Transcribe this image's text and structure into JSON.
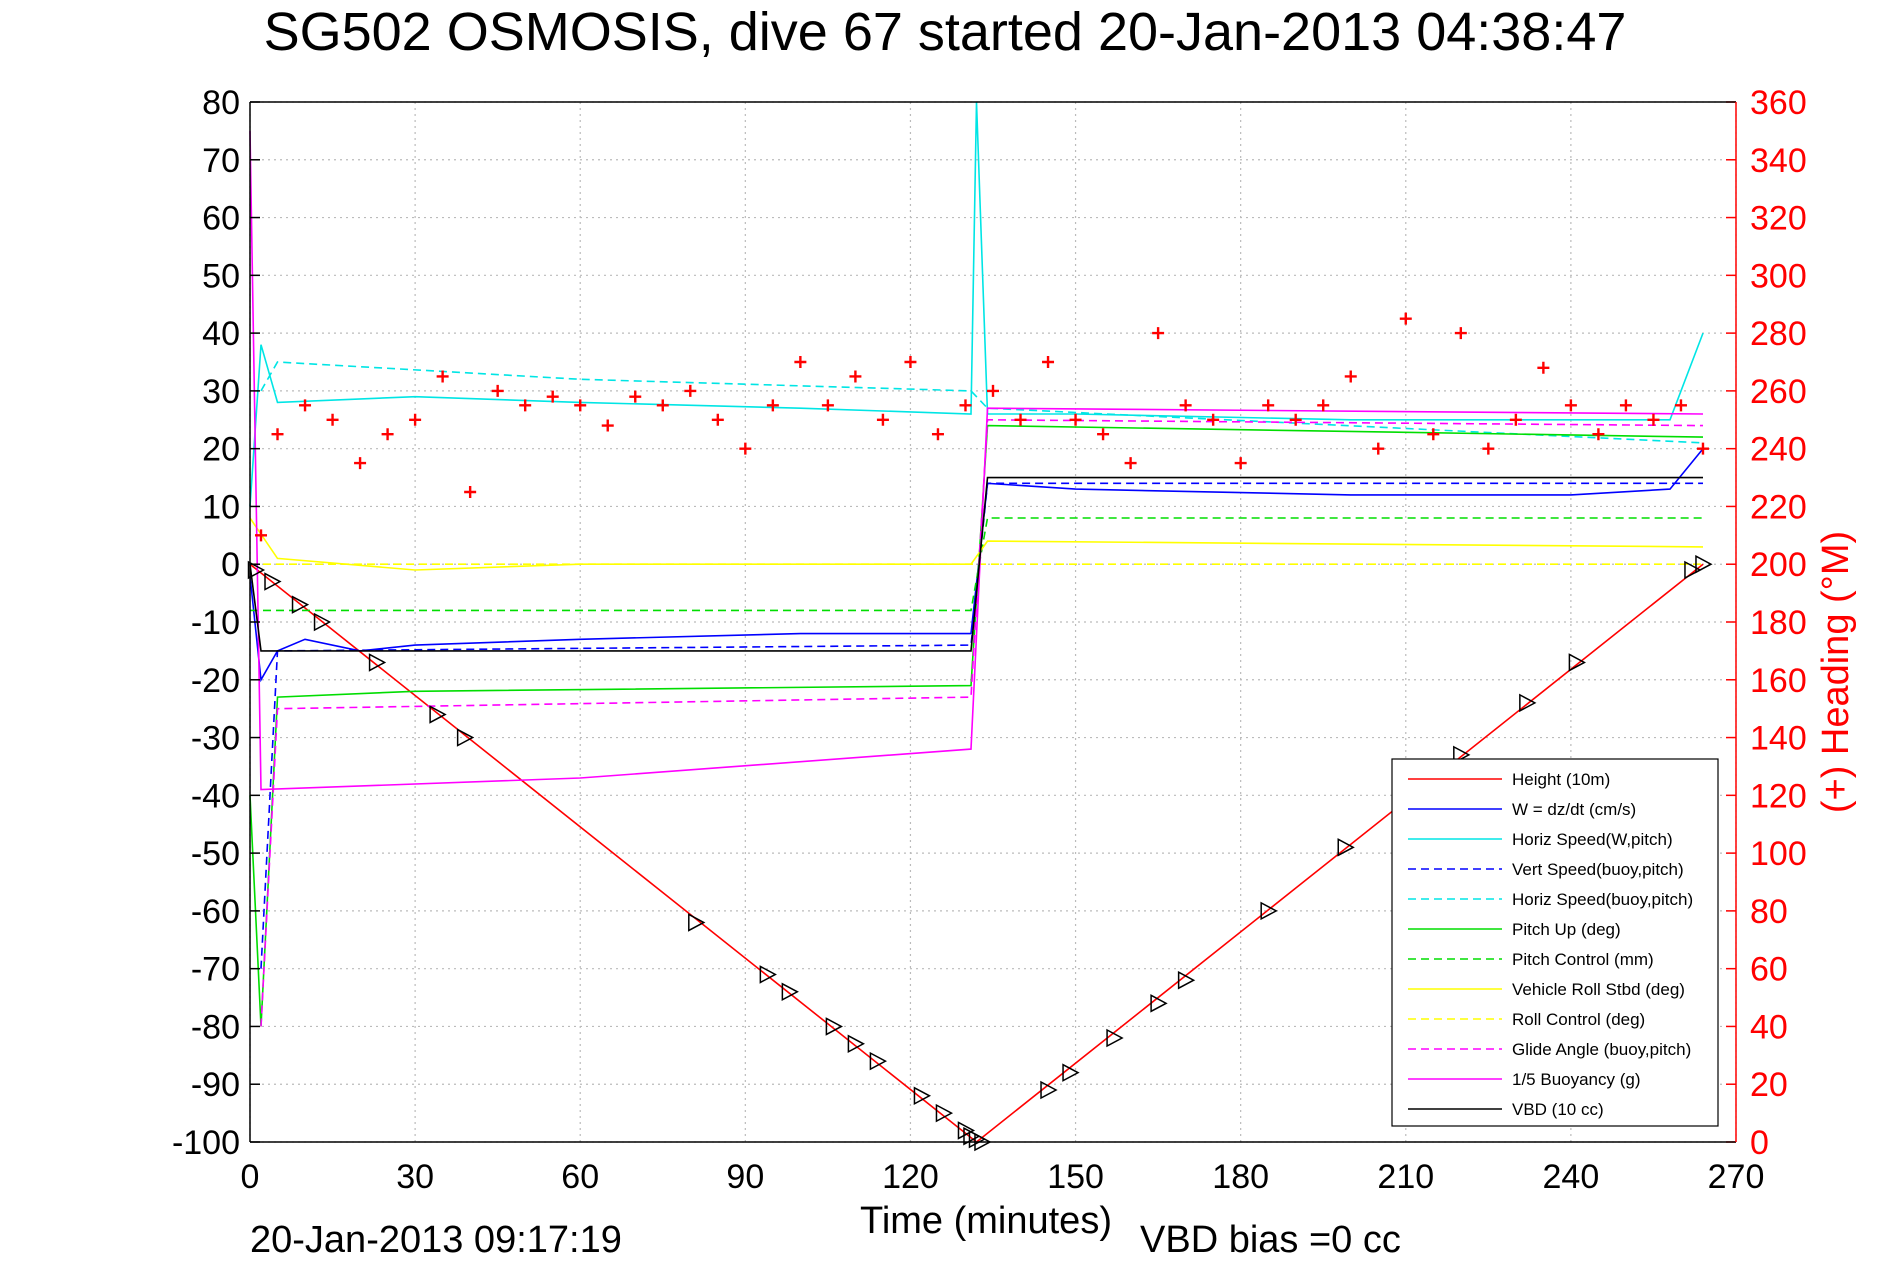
{
  "chart_data": {
    "type": "line",
    "title": "SG502 OSMOSIS, dive 67 started 20-Jan-2013 04:38:47",
    "xlabel": "Time (minutes)",
    "ylabel": "",
    "ylabel_right": "(+) Heading (°M)",
    "footer_left": "20-Jan-2013 09:17:19",
    "footer_right": "VBD bias =0 cc",
    "xlim": [
      0,
      270
    ],
    "ylim": [
      -100,
      80
    ],
    "ylim_right": [
      0,
      360
    ],
    "x_ticks": [
      "0",
      "30",
      "60",
      "90",
      "120",
      "150",
      "180",
      "210",
      "240",
      "270"
    ],
    "y_ticks": [
      "-100",
      "-90",
      "-80",
      "-70",
      "-60",
      "-50",
      "-40",
      "-30",
      "-20",
      "-10",
      "0",
      "10",
      "20",
      "30",
      "40",
      "50",
      "60",
      "70",
      "80"
    ],
    "y_ticks_right": [
      "0",
      "20",
      "40",
      "60",
      "80",
      "100",
      "120",
      "140",
      "160",
      "180",
      "200",
      "220",
      "240",
      "260",
      "280",
      "300",
      "320",
      "340",
      "360"
    ],
    "grid": true,
    "legend_position": "bottom-right",
    "series": [
      {
        "name": "Height (10m)",
        "color": "#ff0000",
        "style": "solid",
        "x": [
          0,
          66,
          132,
          198,
          264
        ],
        "y": [
          0,
          -50,
          -100,
          -50,
          0
        ]
      },
      {
        "name": "W = dz/dt (cm/s)",
        "color": "#0000ff",
        "style": "solid",
        "x": [
          0,
          2,
          5,
          10,
          20,
          30,
          60,
          100,
          131,
          134,
          150,
          200,
          240,
          258,
          264
        ],
        "y": [
          -2,
          -20,
          -15,
          -13,
          -15,
          -14,
          -13,
          -12,
          -12,
          14,
          13,
          12,
          12,
          13,
          20
        ]
      },
      {
        "name": "Horiz Speed(W,pitch)",
        "color": "#00e5e5",
        "style": "solid",
        "x": [
          0,
          2,
          5,
          30,
          60,
          100,
          131,
          132,
          134,
          150,
          200,
          240,
          258,
          264
        ],
        "y": [
          10,
          38,
          28,
          29,
          28,
          27,
          26,
          80,
          26,
          26,
          25,
          25,
          25,
          40
        ]
      },
      {
        "name": "Vert Speed(buoy,pitch)",
        "color": "#0000ff",
        "style": "dashed",
        "x": [
          2,
          5,
          131,
          134,
          264
        ],
        "y": [
          -70,
          -15,
          -14,
          14,
          14
        ]
      },
      {
        "name": "Horiz Speed(buoy,pitch)",
        "color": "#00e5e5",
        "style": "dashed",
        "x": [
          2,
          5,
          60,
          131,
          134,
          264
        ],
        "y": [
          30,
          35,
          32,
          30,
          27,
          21
        ]
      },
      {
        "name": "Pitch Up (deg)",
        "color": "#00dd00",
        "style": "solid",
        "x": [
          0,
          2,
          5,
          30,
          131,
          134,
          264
        ],
        "y": [
          -40,
          -80,
          -23,
          -22,
          -21,
          24,
          22
        ]
      },
      {
        "name": "Pitch Control (mm)",
        "color": "#00dd00",
        "style": "dashed",
        "x": [
          0,
          5,
          131,
          134,
          264
        ],
        "y": [
          -8,
          -8,
          -8,
          8,
          8
        ]
      },
      {
        "name": "Vehicle Roll Stbd (deg)",
        "color": "#ffff00",
        "style": "solid",
        "x": [
          0,
          5,
          30,
          60,
          131,
          134,
          264
        ],
        "y": [
          8,
          1,
          -1,
          0,
          0,
          4,
          3
        ]
      },
      {
        "name": "Roll Control (deg)",
        "color": "#ffff00",
        "style": "dashed",
        "x": [
          0,
          264
        ],
        "y": [
          0,
          0
        ]
      },
      {
        "name": "Glide Angle (buoy,pitch)",
        "color": "#ff00ff",
        "style": "dashed",
        "x": [
          2,
          5,
          131,
          134,
          264
        ],
        "y": [
          -80,
          -25,
          -23,
          25,
          24
        ]
      },
      {
        "name": "1/5 Buoyancy (g)",
        "color": "#ff00ff",
        "style": "solid",
        "x": [
          0,
          2,
          60,
          131,
          134,
          264
        ],
        "y": [
          75,
          -39,
          -37,
          -32,
          27,
          26
        ]
      },
      {
        "name": "VBD (10 cc)",
        "color": "#000000",
        "style": "solid",
        "x": [
          0,
          2,
          131,
          134,
          264
        ],
        "y": [
          0,
          -15,
          -15,
          15,
          15
        ]
      }
    ],
    "heading": {
      "name": "(+) Heading (°M)",
      "color": "#ff0000",
      "marker": "+",
      "x": [
        2,
        5,
        10,
        15,
        20,
        25,
        30,
        35,
        40,
        45,
        50,
        55,
        60,
        65,
        70,
        75,
        80,
        85,
        90,
        95,
        100,
        105,
        110,
        115,
        120,
        125,
        130,
        135,
        140,
        145,
        150,
        155,
        160,
        165,
        170,
        175,
        180,
        185,
        190,
        195,
        200,
        205,
        210,
        215,
        220,
        225,
        230,
        235,
        240,
        245,
        250,
        255,
        260,
        264
      ],
      "y": [
        210,
        245,
        255,
        250,
        235,
        245,
        250,
        265,
        225,
        260,
        255,
        258,
        255,
        248,
        258,
        255,
        260,
        250,
        240,
        255,
        270,
        255,
        265,
        250,
        270,
        245,
        255,
        260,
        250,
        270,
        250,
        245,
        235,
        280,
        255,
        250,
        235,
        255,
        250,
        255,
        265,
        240,
        285,
        245,
        280,
        240,
        250,
        268,
        255,
        245,
        255,
        250,
        255,
        240
      ]
    },
    "vbd_markers": {
      "name": "VBD markers",
      "color": "#000000",
      "marker": "triangle-right",
      "x": [
        1,
        4,
        9,
        13,
        23,
        34,
        39,
        81,
        94,
        98,
        106,
        110,
        114,
        122,
        126,
        130,
        131,
        132,
        133,
        145,
        149,
        157,
        165,
        170,
        185,
        199,
        209,
        220,
        232,
        241,
        262,
        264
      ],
      "y": [
        -1,
        -3,
        -7,
        -10,
        -17,
        -26,
        -30,
        -62,
        -71,
        -74,
        -80,
        -83,
        -86,
        -92,
        -95,
        -98,
        -99,
        -99.5,
        -100,
        -91,
        -88,
        -82,
        -76,
        -72,
        -60,
        -49,
        -41,
        -33,
        -24,
        -17,
        -1,
        0
      ]
    }
  }
}
